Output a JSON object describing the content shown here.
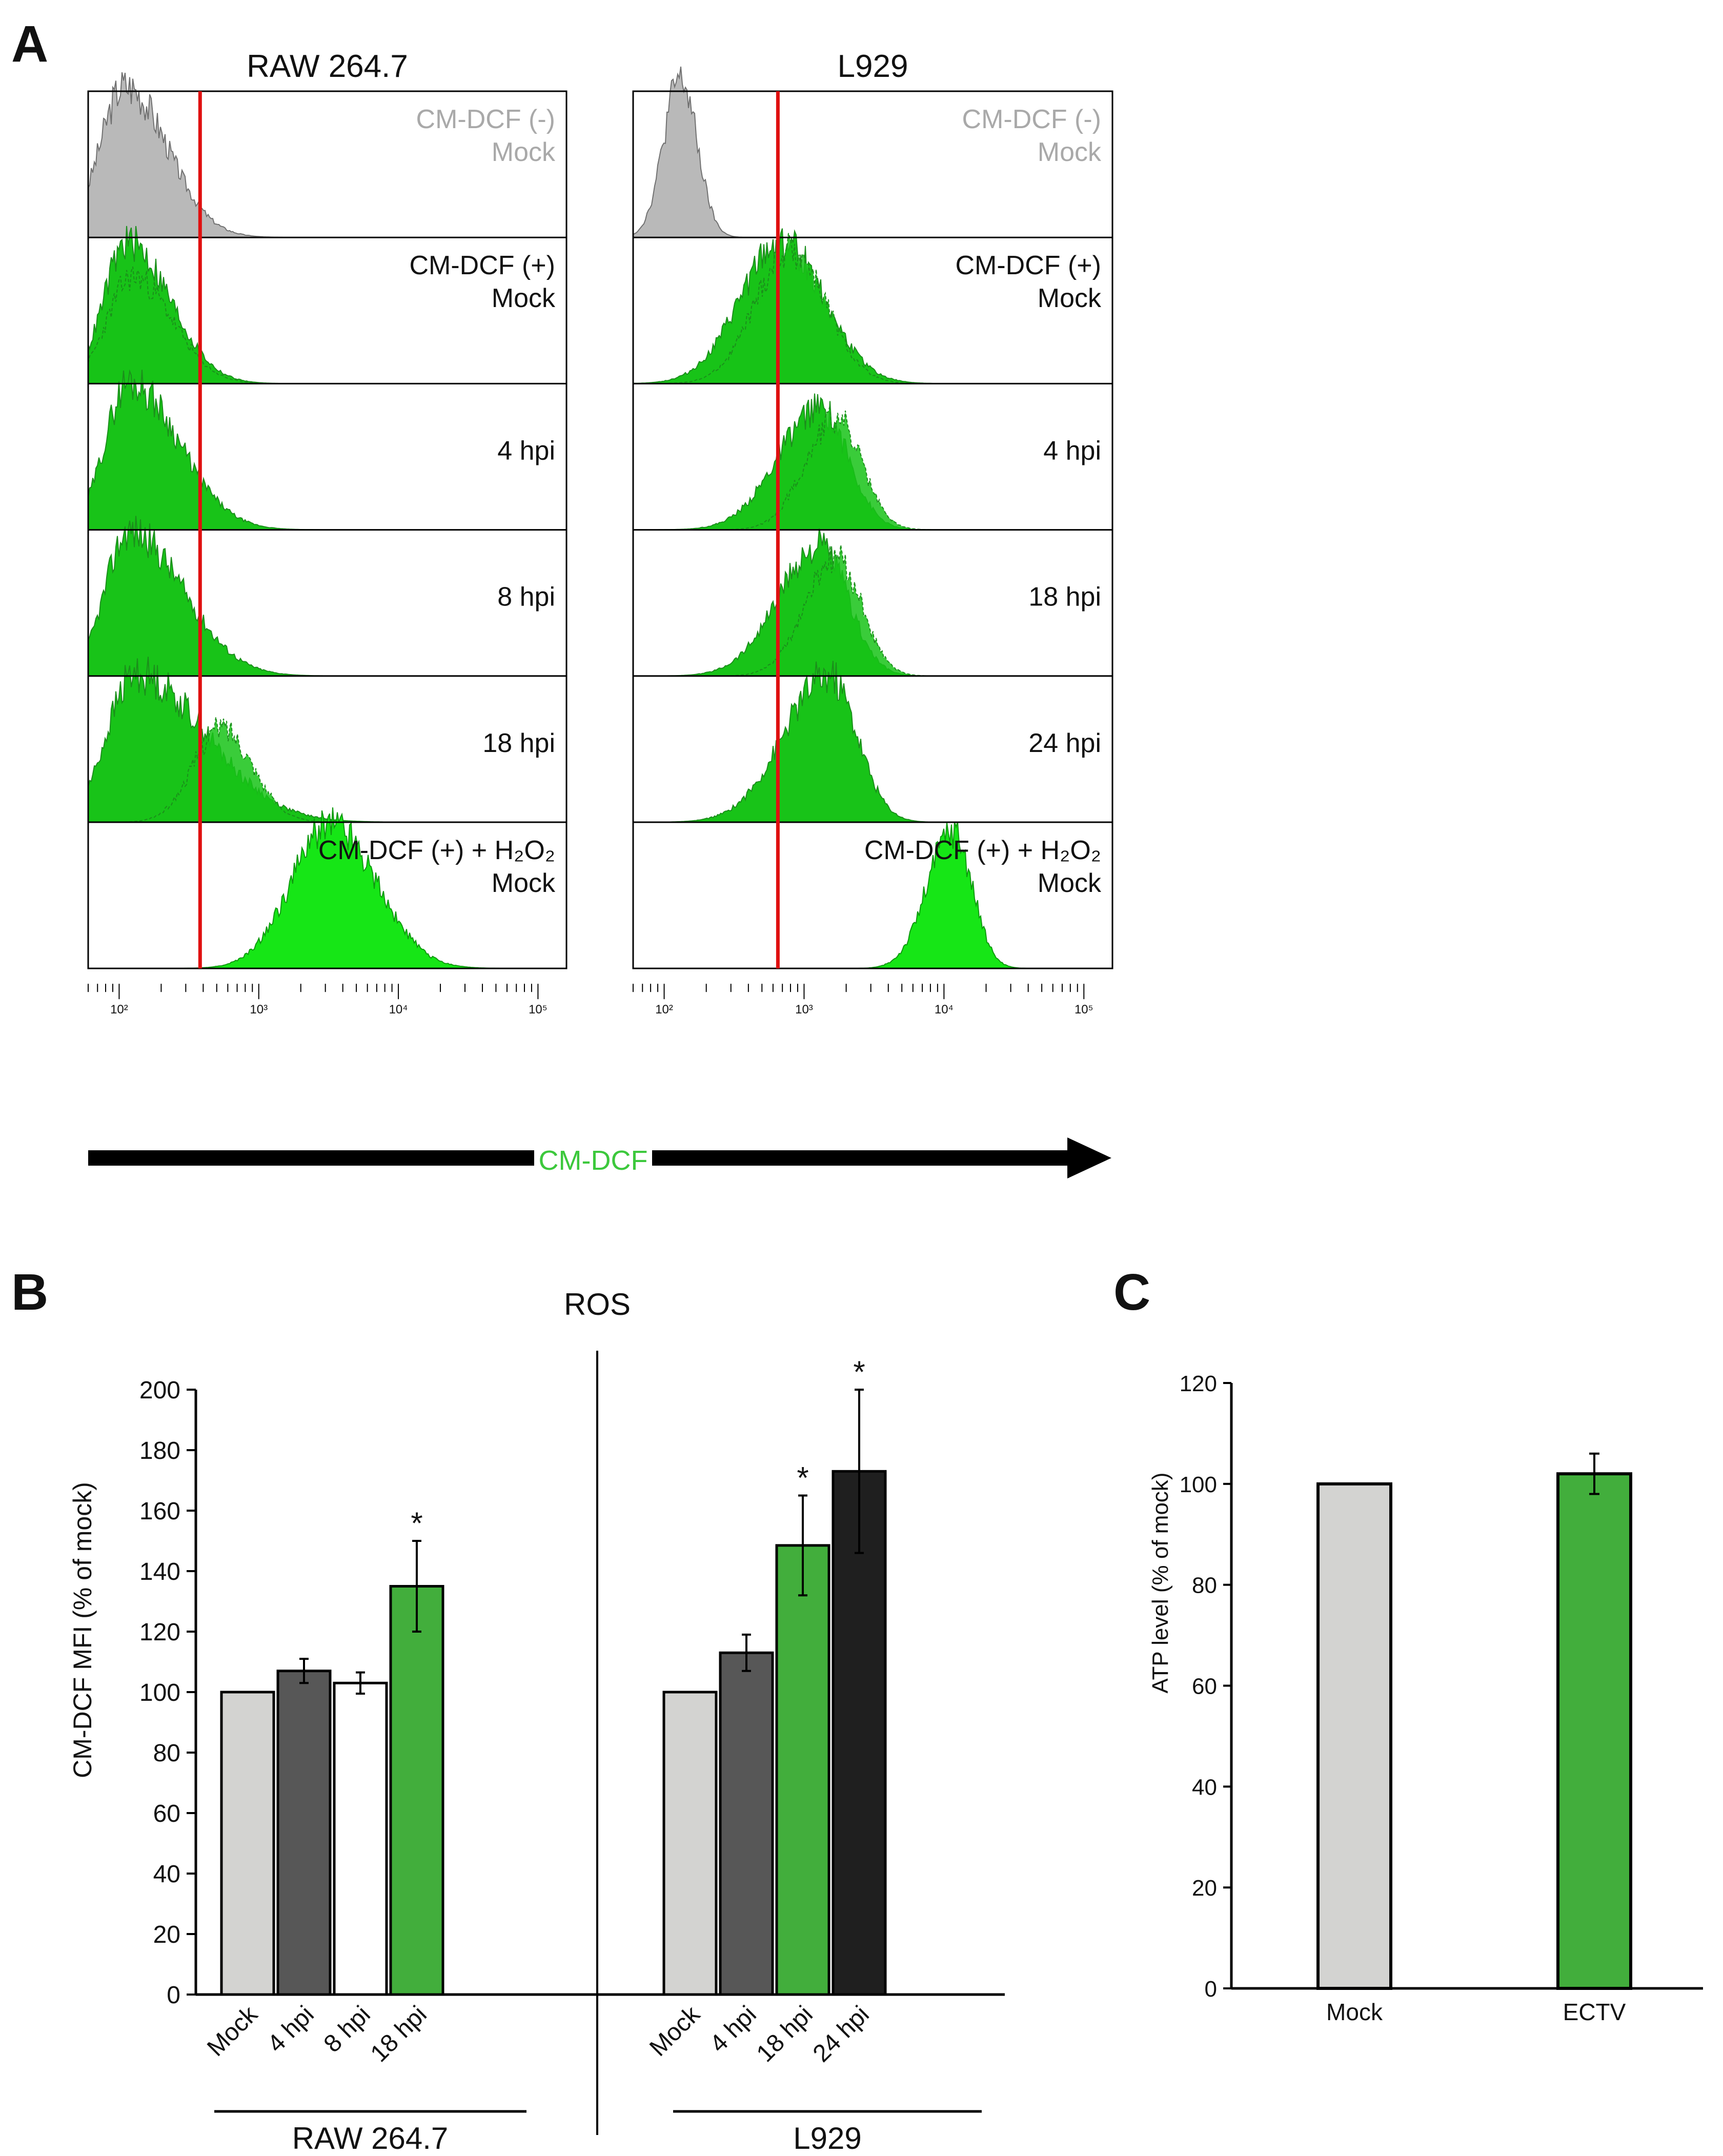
{
  "panel_letters": {
    "a": "A",
    "b": "B",
    "c": "C"
  },
  "colors": {
    "grey_fill": "#b9b9b9",
    "green_fill": "#18c318",
    "bright_green_fill": "#16e616",
    "red_gate": "#e01010",
    "bar_mock": "#d3d3d1",
    "bar_dark": "#575757",
    "bar_white": "#ffffff",
    "bar_green": "#42ae3c",
    "bar_black": "#1f1f1f",
    "axis_label_green": "#3cc83c"
  },
  "chart_data": [
    {
      "id": "A",
      "type": "histogram",
      "axis_label": "CM-DCF",
      "x_scale": "log",
      "x_ticks": [
        "10²",
        "10³",
        "10⁴",
        "10⁵"
      ],
      "x_tick_values": [
        100,
        1000,
        10000,
        100000
      ],
      "plots": [
        {
          "title": "RAW 264.7",
          "gate_value": 380,
          "rows": [
            {
              "label1": "CM-DCF (-)",
              "label2": "Mock",
              "label_style": "grey",
              "curves": [
                {
                  "color": "grey",
                  "peak": 110,
                  "sigma_left": 0.18,
                  "sigma_right": 0.3,
                  "height": 0.88
                }
              ]
            },
            {
              "label1": "CM-DCF (+)",
              "label2": "Mock",
              "label_style": "black",
              "curves": [
                {
                  "color": "green",
                  "peak": 115,
                  "sigma_left": 0.17,
                  "sigma_right": 0.3,
                  "height": 0.82
                },
                {
                  "color": "green",
                  "peak": 125,
                  "sigma_left": 0.18,
                  "sigma_right": 0.28,
                  "height": 0.62
                }
              ]
            },
            {
              "label1": "4 hpi",
              "label2": "",
              "label_style": "black",
              "curves": [
                {
                  "color": "green",
                  "peak": 118,
                  "sigma_left": 0.17,
                  "sigma_right": 0.35,
                  "height": 0.86
                }
              ]
            },
            {
              "label1": "8 hpi",
              "label2": "",
              "label_style": "black",
              "curves": [
                {
                  "color": "green",
                  "peak": 118,
                  "sigma_left": 0.17,
                  "sigma_right": 0.38,
                  "height": 0.84
                }
              ]
            },
            {
              "label1": "18 hpi",
              "label2": "",
              "label_style": "black",
              "curves": [
                {
                  "color": "green",
                  "peak": 130,
                  "sigma_left": 0.2,
                  "sigma_right": 0.5,
                  "height": 0.86
                },
                {
                  "color": "green",
                  "peak": 540,
                  "sigma_left": 0.2,
                  "sigma_right": 0.22,
                  "height": 0.55
                }
              ]
            },
            {
              "label1": "CM-DCF (+) + H₂O₂",
              "label2": "Mock",
              "label_style": "black",
              "curves": [
                {
                  "color": "bright",
                  "peak": 3300,
                  "sigma_left": 0.28,
                  "sigma_right": 0.32,
                  "height": 0.85
                }
              ]
            }
          ]
        },
        {
          "title": "L929",
          "gate_value": 650,
          "rows": [
            {
              "label1": "CM-DCF (-)",
              "label2": "Mock",
              "label_style": "grey",
              "curves": [
                {
                  "color": "grey",
                  "peak": 130,
                  "sigma_left": 0.12,
                  "sigma_right": 0.12,
                  "height": 0.92
                }
              ]
            },
            {
              "label1": "CM-DCF (+)",
              "label2": "Mock",
              "label_style": "black",
              "curves": [
                {
                  "color": "green",
                  "peak": 700,
                  "sigma_left": 0.3,
                  "sigma_right": 0.3,
                  "height": 0.82
                },
                {
                  "color": "green",
                  "peak": 800,
                  "sigma_left": 0.25,
                  "sigma_right": 0.25,
                  "height": 0.78
                }
              ]
            },
            {
              "label1": "4 hpi",
              "label2": "",
              "label_style": "black",
              "curves": [
                {
                  "color": "green",
                  "peak": 1300,
                  "sigma_left": 0.3,
                  "sigma_right": 0.2,
                  "height": 0.7
                },
                {
                  "color": "green",
                  "peak": 1700,
                  "sigma_left": 0.22,
                  "sigma_right": 0.18,
                  "height": 0.65
                }
              ]
            },
            {
              "label1": "18 hpi",
              "label2": "",
              "label_style": "black",
              "curves": [
                {
                  "color": "green",
                  "peak": 1300,
                  "sigma_left": 0.3,
                  "sigma_right": 0.2,
                  "height": 0.75
                },
                {
                  "color": "green",
                  "peak": 1700,
                  "sigma_left": 0.22,
                  "sigma_right": 0.18,
                  "height": 0.68
                }
              ]
            },
            {
              "label1": "24 hpi",
              "label2": "",
              "label_style": "black",
              "curves": [
                {
                  "color": "green",
                  "peak": 1500,
                  "sigma_left": 0.32,
                  "sigma_right": 0.2,
                  "height": 0.85
                }
              ]
            },
            {
              "label1": "CM-DCF (+) + H₂O₂",
              "label2": "Mock",
              "label_style": "black",
              "curves": [
                {
                  "color": "bright",
                  "peak": 11500,
                  "sigma_left": 0.18,
                  "sigma_right": 0.14,
                  "height": 0.8
                }
              ]
            }
          ]
        }
      ]
    },
    {
      "id": "B",
      "type": "bar",
      "title": "ROS",
      "ylabel": "CM-DCF MFI (% of mock)",
      "ylim": [
        0,
        200
      ],
      "yticks": [
        0,
        20,
        40,
        60,
        80,
        100,
        120,
        140,
        160,
        180,
        200
      ],
      "groups": [
        {
          "name": "RAW 264.7",
          "categories": [
            "Mock",
            "4 hpi",
            "8 hpi",
            "18 hpi"
          ],
          "values": [
            100,
            107,
            103,
            135
          ],
          "errors": [
            0,
            4,
            3.5,
            15
          ],
          "significant": [
            false,
            false,
            false,
            true
          ],
          "fills": [
            "bar_mock",
            "bar_dark",
            "bar_white",
            "bar_green"
          ]
        },
        {
          "name": "L929",
          "categories": [
            "Mock",
            "4 hpi",
            "18 hpi",
            "24 hpi"
          ],
          "values": [
            100,
            113,
            148.5,
            173
          ],
          "errors": [
            0,
            6,
            16.5,
            27
          ],
          "significant": [
            false,
            false,
            true,
            true
          ],
          "fills": [
            "bar_mock",
            "bar_dark",
            "bar_green",
            "bar_black"
          ]
        }
      ],
      "significance_marker": "*"
    },
    {
      "id": "C",
      "type": "bar",
      "title": "",
      "ylabel": "ATP level (% of mock)",
      "ylim": [
        0,
        120
      ],
      "yticks": [
        0,
        20,
        40,
        60,
        80,
        100,
        120
      ],
      "categories": [
        "Mock",
        "ECTV"
      ],
      "values": [
        100,
        102
      ],
      "errors": [
        0,
        4
      ],
      "fills": [
        "bar_mock",
        "bar_green"
      ]
    }
  ]
}
